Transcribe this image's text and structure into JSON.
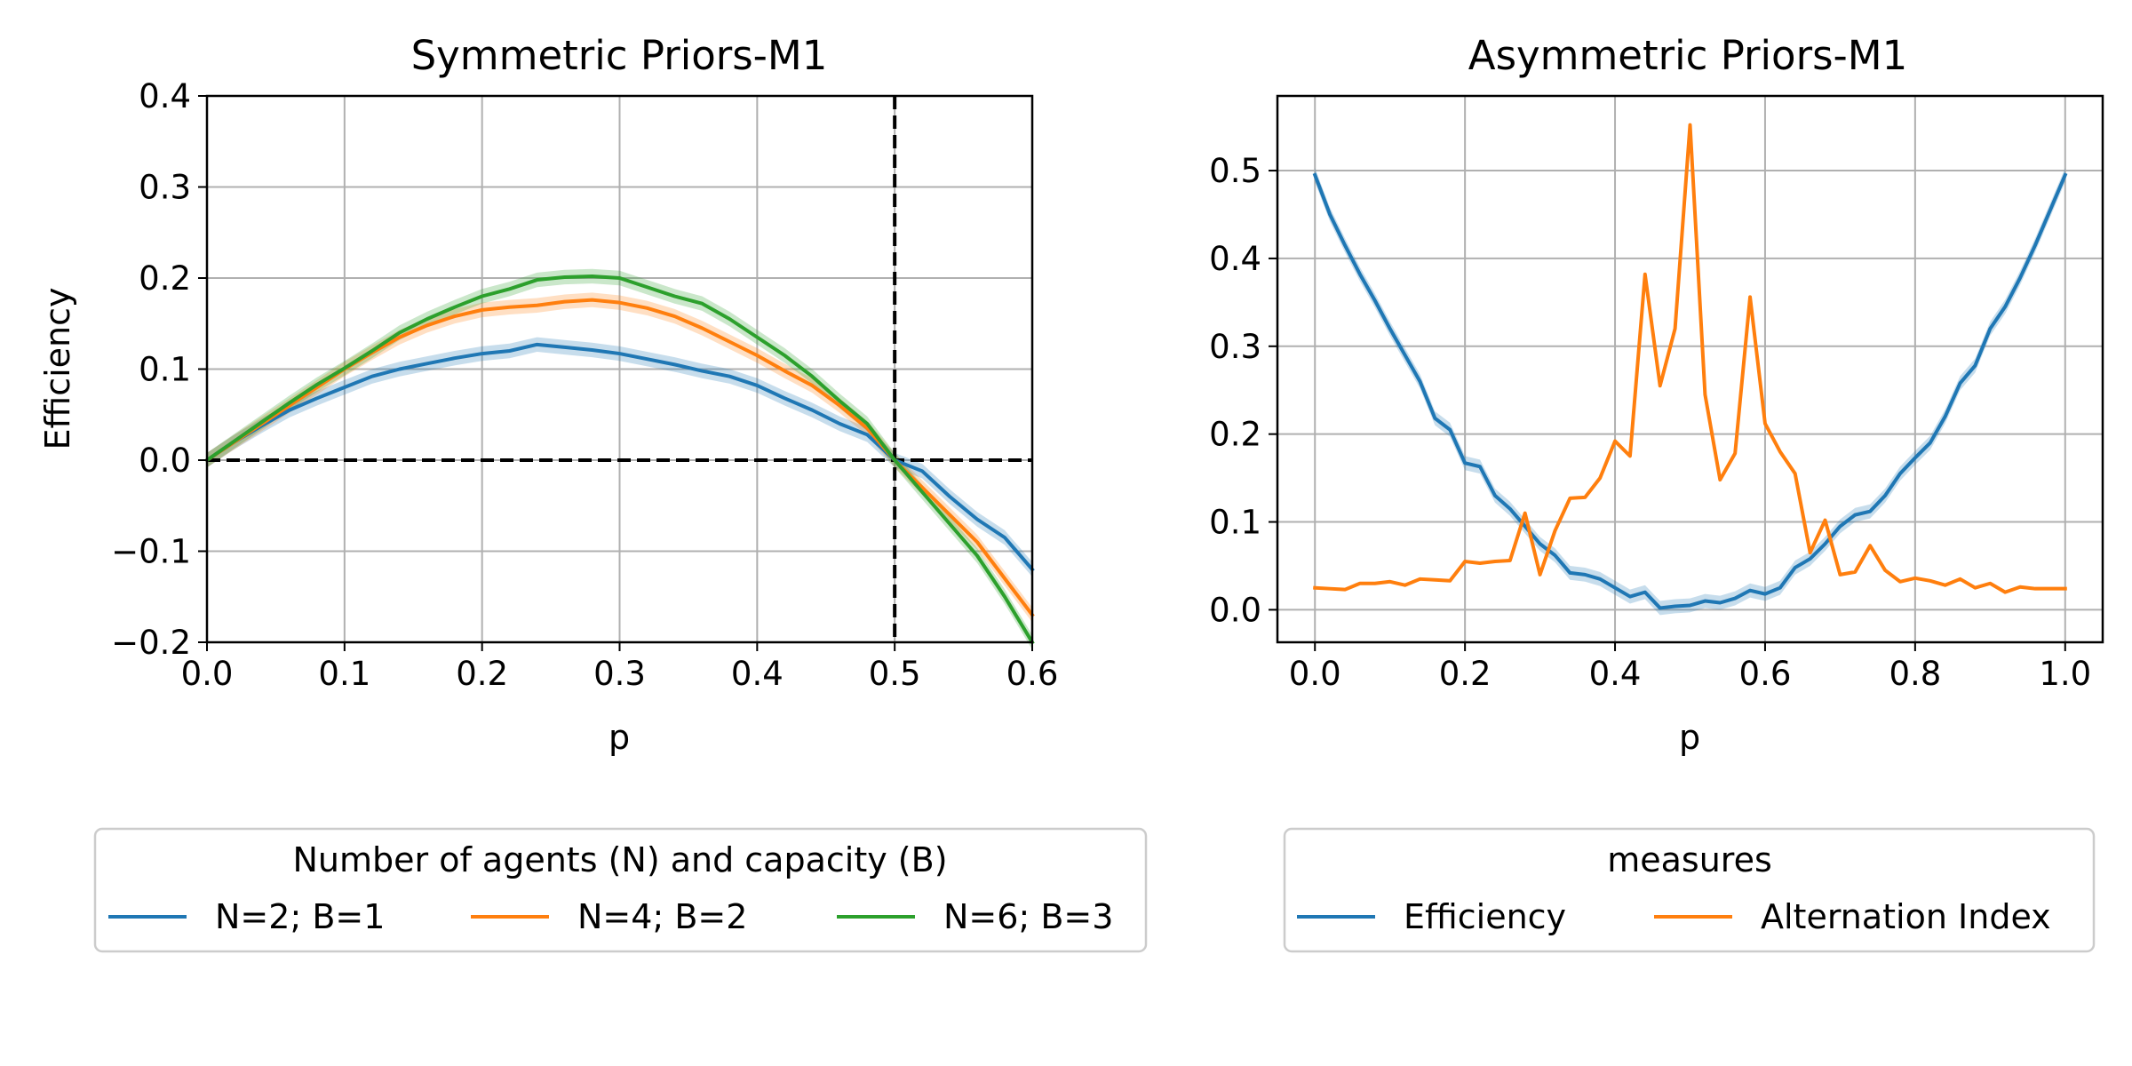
{
  "chart_data": [
    {
      "type": "line",
      "title": "Symmetric Priors-M1",
      "xlabel": "p",
      "ylabel": "Efficiency",
      "xlim": [
        0.0,
        0.6
      ],
      "ylim": [
        -0.2,
        0.4
      ],
      "xticks": [
        0.0,
        0.1,
        0.2,
        0.3,
        0.4,
        0.5,
        0.6
      ],
      "yticks": [
        -0.2,
        -0.1,
        0.0,
        0.1,
        0.2,
        0.3,
        0.4
      ],
      "xtick_labels": [
        "0.0",
        "0.1",
        "0.2",
        "0.3",
        "0.4",
        "0.5",
        "0.6"
      ],
      "ytick_labels": [
        "−0.2",
        "−0.1",
        "0.0",
        "0.1",
        "0.2",
        "0.3",
        "0.4"
      ],
      "grid": true,
      "reference_lines": [
        {
          "orientation": "horizontal",
          "value": 0.0,
          "style": "dashed",
          "color": "#000000"
        },
        {
          "orientation": "vertical",
          "value": 0.5,
          "style": "dashed",
          "color": "#000000"
        }
      ],
      "legend": {
        "title": "Number of agents (N) and capacity (B)",
        "placement": "below",
        "entries": [
          "N=2; B=1",
          "N=4; B=2",
          "N=6; B=3"
        ]
      },
      "x": [
        0.0,
        0.02,
        0.04,
        0.06,
        0.08,
        0.1,
        0.12,
        0.14,
        0.16,
        0.18,
        0.2,
        0.22,
        0.24,
        0.26,
        0.28,
        0.3,
        0.32,
        0.34,
        0.36,
        0.38,
        0.4,
        0.42,
        0.44,
        0.46,
        0.48,
        0.5,
        0.52,
        0.54,
        0.56,
        0.58,
        0.6
      ],
      "series": [
        {
          "name": "N=2; B=1",
          "color": "#1f77b4",
          "band": 0.008,
          "values": [
            0.0,
            0.02,
            0.038,
            0.055,
            0.068,
            0.08,
            0.092,
            0.1,
            0.106,
            0.112,
            0.117,
            0.12,
            0.127,
            0.124,
            0.121,
            0.117,
            0.111,
            0.105,
            0.098,
            0.092,
            0.082,
            0.068,
            0.055,
            0.04,
            0.028,
            0.0,
            -0.012,
            -0.04,
            -0.065,
            -0.085,
            -0.12
          ]
        },
        {
          "name": "N=4; B=2",
          "color": "#ff7f0e",
          "band": 0.008,
          "values": [
            0.0,
            0.02,
            0.04,
            0.06,
            0.08,
            0.1,
            0.118,
            0.135,
            0.148,
            0.158,
            0.165,
            0.168,
            0.17,
            0.174,
            0.176,
            0.173,
            0.167,
            0.158,
            0.145,
            0.13,
            0.115,
            0.098,
            0.082,
            0.06,
            0.035,
            0.0,
            -0.03,
            -0.06,
            -0.09,
            -0.13,
            -0.17
          ]
        },
        {
          "name": "N=6; B=3",
          "color": "#2ca02c",
          "band": 0.008,
          "values": [
            0.0,
            0.021,
            0.042,
            0.063,
            0.083,
            0.101,
            0.12,
            0.14,
            0.155,
            0.168,
            0.18,
            0.188,
            0.198,
            0.201,
            0.202,
            0.2,
            0.19,
            0.18,
            0.172,
            0.155,
            0.135,
            0.115,
            0.092,
            0.065,
            0.04,
            0.0,
            -0.035,
            -0.07,
            -0.105,
            -0.15,
            -0.2
          ]
        }
      ]
    },
    {
      "type": "line",
      "title": "Asymmetric Priors-M1",
      "xlabel": "p",
      "ylabel": "",
      "xlim": [
        -0.05,
        1.05
      ],
      "ylim": [
        -0.037,
        0.585
      ],
      "xticks": [
        0.0,
        0.2,
        0.4,
        0.6,
        0.8,
        1.0
      ],
      "yticks": [
        0.0,
        0.1,
        0.2,
        0.3,
        0.4,
        0.5
      ],
      "xtick_labels": [
        "0.0",
        "0.2",
        "0.4",
        "0.6",
        "0.8",
        "1.0"
      ],
      "ytick_labels": [
        "0.0",
        "0.1",
        "0.2",
        "0.3",
        "0.4",
        "0.5"
      ],
      "grid": true,
      "legend": {
        "title": "measures",
        "placement": "below",
        "entries": [
          "Efficiency",
          "Alternation Index"
        ]
      },
      "x": [
        0.0,
        0.02,
        0.04,
        0.06,
        0.08,
        0.1,
        0.12,
        0.14,
        0.16,
        0.18,
        0.2,
        0.22,
        0.24,
        0.26,
        0.28,
        0.3,
        0.32,
        0.34,
        0.36,
        0.38,
        0.4,
        0.42,
        0.44,
        0.46,
        0.48,
        0.5,
        0.52,
        0.54,
        0.56,
        0.58,
        0.6,
        0.62,
        0.64,
        0.66,
        0.68,
        0.7,
        0.72,
        0.74,
        0.76,
        0.78,
        0.8,
        0.82,
        0.84,
        0.86,
        0.88,
        0.9,
        0.92,
        0.94,
        0.96,
        0.98,
        1.0
      ],
      "series": [
        {
          "name": "Efficiency",
          "color": "#1f77b4",
          "band": 0.008,
          "values": [
            0.495,
            0.45,
            0.415,
            0.382,
            0.352,
            0.32,
            0.29,
            0.26,
            0.218,
            0.205,
            0.167,
            0.163,
            0.13,
            0.115,
            0.095,
            0.075,
            0.062,
            0.042,
            0.04,
            0.035,
            0.025,
            0.015,
            0.02,
            0.002,
            0.004,
            0.005,
            0.01,
            0.008,
            0.013,
            0.022,
            0.018,
            0.025,
            0.048,
            0.058,
            0.075,
            0.095,
            0.108,
            0.112,
            0.13,
            0.155,
            0.173,
            0.19,
            0.22,
            0.258,
            0.278,
            0.32,
            0.345,
            0.378,
            0.415,
            0.455,
            0.495
          ]
        },
        {
          "name": "Alternation Index",
          "color": "#ff7f0e",
          "band": 0,
          "values": [
            0.025,
            0.024,
            0.023,
            0.03,
            0.03,
            0.032,
            0.028,
            0.035,
            0.034,
            0.033,
            0.055,
            0.053,
            0.055,
            0.056,
            0.11,
            0.04,
            0.09,
            0.127,
            0.128,
            0.15,
            0.192,
            0.175,
            0.382,
            0.255,
            0.32,
            0.552,
            0.245,
            0.148,
            0.178,
            0.356,
            0.212,
            0.18,
            0.155,
            0.065,
            0.102,
            0.04,
            0.043,
            0.073,
            0.045,
            0.032,
            0.036,
            0.033,
            0.028,
            0.035,
            0.025,
            0.03,
            0.02,
            0.026,
            0.024,
            0.024,
            0.024
          ]
        }
      ]
    }
  ]
}
